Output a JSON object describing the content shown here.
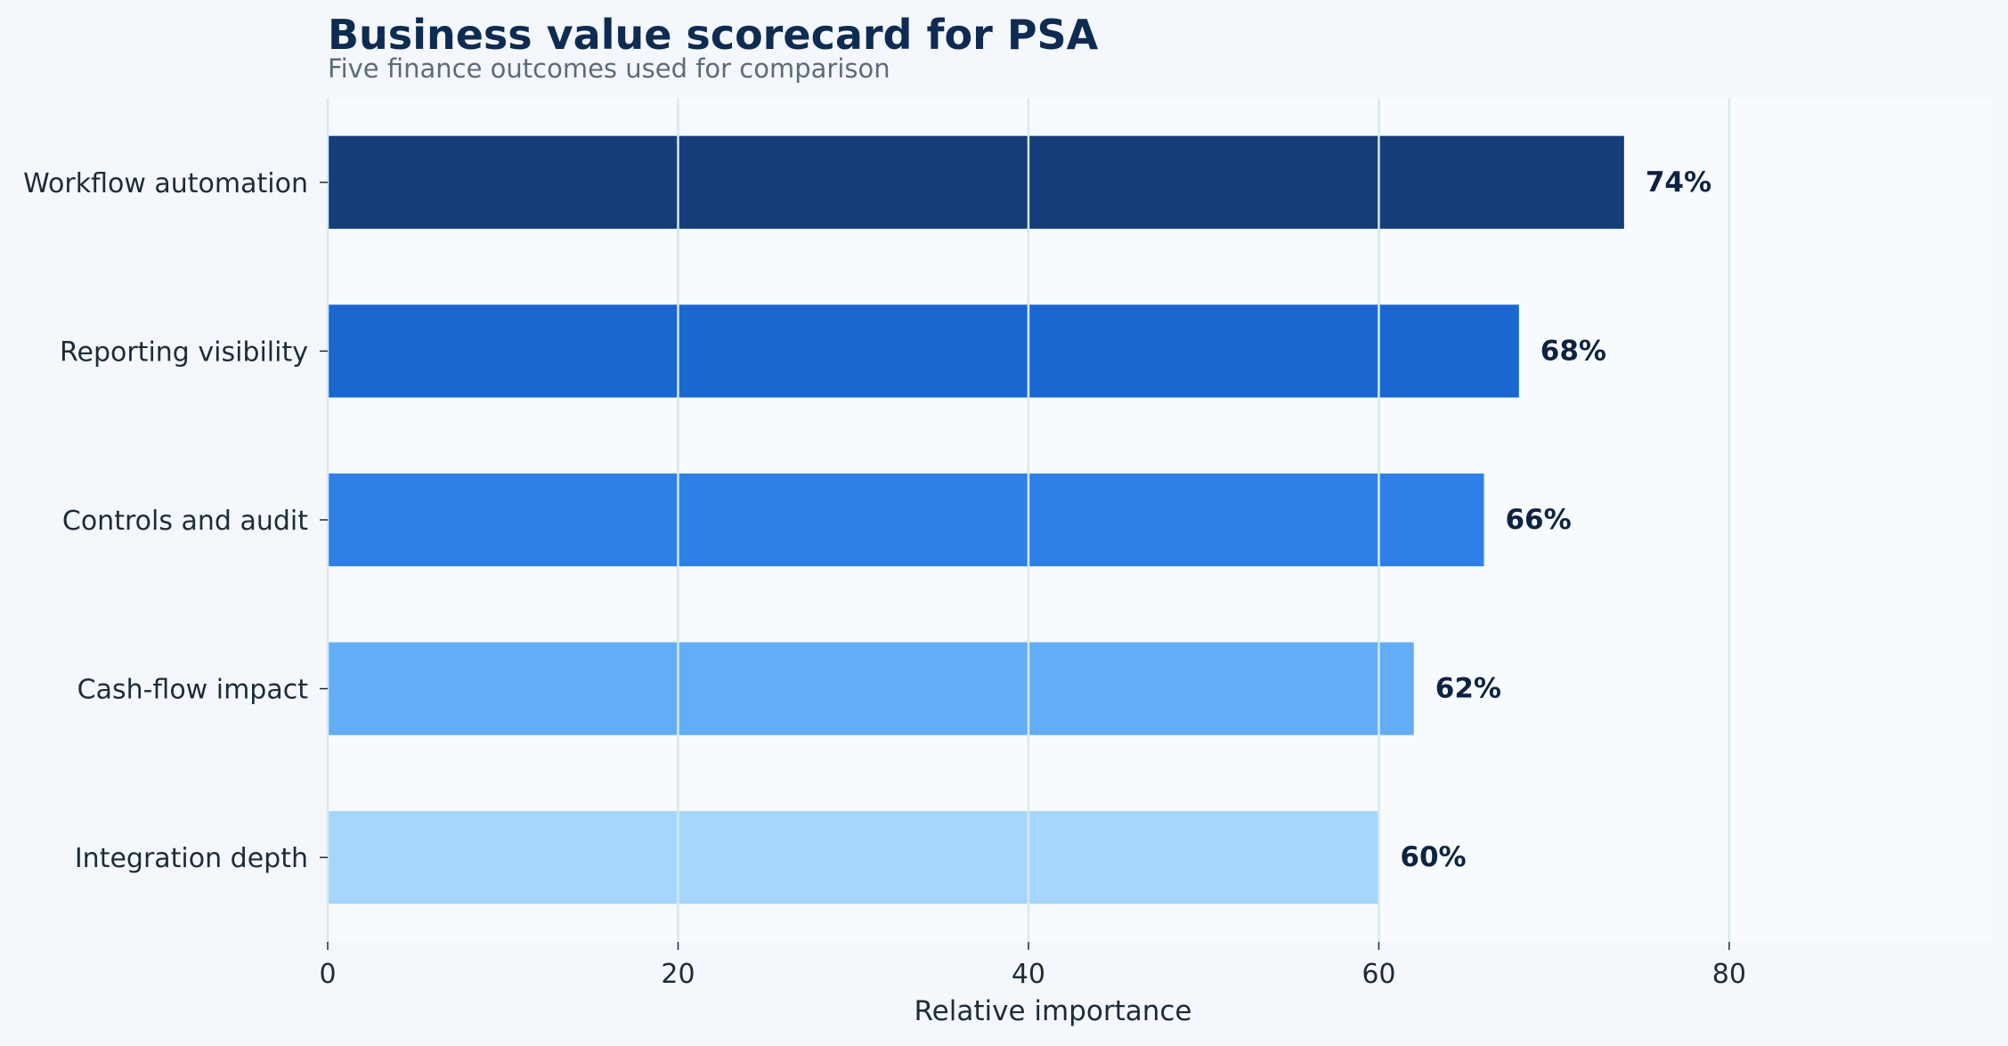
{
  "chart_data": {
    "type": "bar",
    "orientation": "horizontal",
    "title": "Business value scorecard for PSA",
    "subtitle": "Five finance outcomes used for comparison",
    "xlabel": "Relative importance",
    "ylabel": "",
    "xlim": [
      0,
      95
    ],
    "xticks": [
      0,
      20,
      40,
      60,
      80
    ],
    "grid": "vertical",
    "legend": "none",
    "categories": [
      "Workflow automation",
      "Reporting visibility",
      "Controls and audit",
      "Cash-flow impact",
      "Integration depth"
    ],
    "values": [
      74,
      68,
      66,
      62,
      60
    ],
    "value_labels": [
      "74%",
      "68%",
      "66%",
      "62%",
      "60%"
    ],
    "colors": [
      "#143d79",
      "#1b67d2",
      "#2f7fe8",
      "#63adf7",
      "#a5d7fd"
    ]
  },
  "theme": {
    "page_background": "#f4f8fc",
    "plot_background": "#f7fbfe",
    "grid_color": "#d5e9f0",
    "title_color": "#0e2b52",
    "subtitle_color": "#5c6b7a",
    "text_color": "#1d2b3a",
    "data_label_color": "#0e2342"
  }
}
